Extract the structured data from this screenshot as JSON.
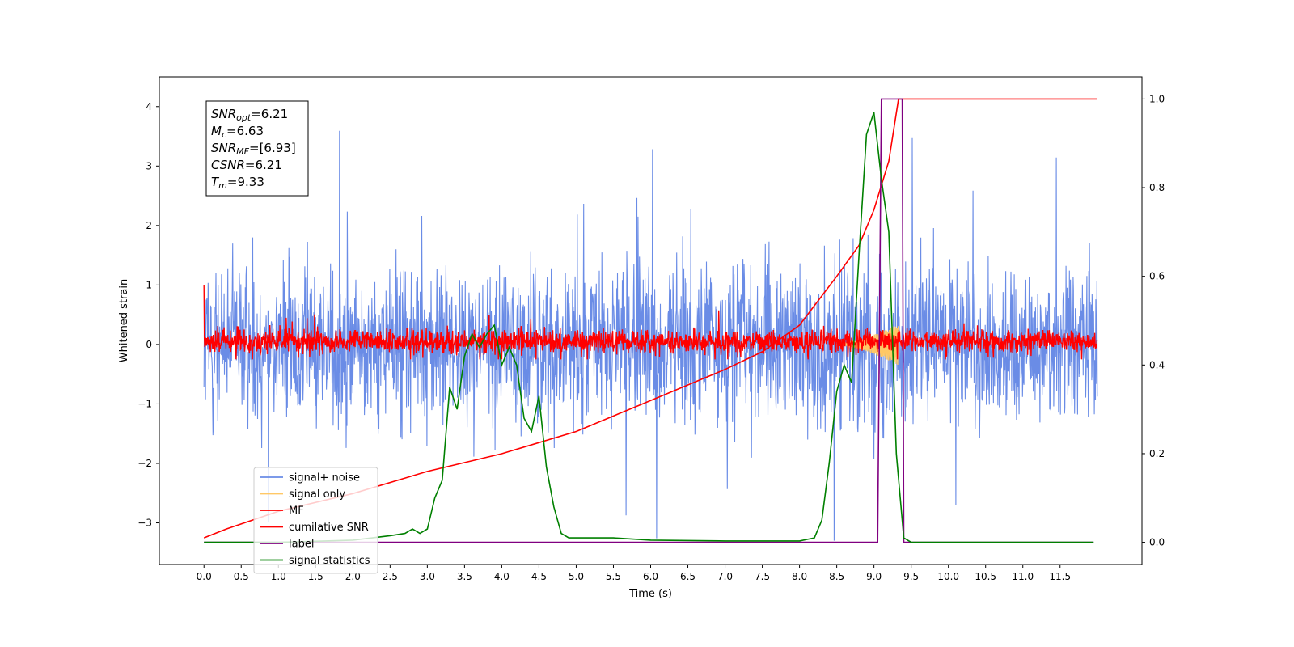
{
  "chart_data": {
    "type": "line",
    "xlabel": "Time (s)",
    "ylabel": "Whitened strain",
    "xlim": [
      -0.6,
      12.6
    ],
    "ylim_left": [
      -3.7,
      4.5
    ],
    "ylim_right": [
      -0.05,
      1.05
    ],
    "x_ticks": [
      "0.0",
      "0.5",
      "1.0",
      "1.5",
      "2.0",
      "2.5",
      "3.0",
      "3.5",
      "4.0",
      "4.5",
      "5.0",
      "5.5",
      "6.0",
      "6.5",
      "7.0",
      "7.5",
      "8.0",
      "8.5",
      "9.0",
      "9.5",
      "10.0",
      "10.5",
      "11.0",
      "11.5"
    ],
    "y_ticks_left": [
      "4",
      "3",
      "2",
      "1",
      "0",
      "−1",
      "−2",
      "−3"
    ],
    "y_ticks_right": [
      "1.0",
      "0.8",
      "0.6",
      "0.4",
      "0.2",
      "0.0"
    ],
    "annotation": {
      "lines": [
        {
          "symbol": "SNR",
          "sub": "opt",
          "text": "=6.21"
        },
        {
          "symbol": "M",
          "sub": "c",
          "text": "=6.63"
        },
        {
          "symbol": "SNR",
          "sub": "MF",
          "text": "=[6.93]"
        },
        {
          "symbol": "CSNR",
          "sub": "",
          "text": "=6.21"
        },
        {
          "symbol": "T",
          "sub": "m",
          "text": "=9.33"
        }
      ]
    },
    "legend_position": "lower-left",
    "series": [
      {
        "name": "signal+ noise",
        "axis": "left",
        "color": "#6a8ce6",
        "kind": "noise",
        "x_range": [
          0.0,
          12.0
        ],
        "typical_range": [
          -1.7,
          1.7
        ],
        "extremes": [
          -3.3,
          4.15
        ]
      },
      {
        "name": "signal only",
        "axis": "left",
        "color": "#ffc866",
        "kind": "chirp",
        "x_range": [
          8.5,
          9.33
        ],
        "amplitude": 0.35
      },
      {
        "name": "MF",
        "axis": "left",
        "color": "#ff0000",
        "kind": "noise",
        "x_range": [
          0.0,
          12.0
        ],
        "typical_range": [
          -0.2,
          0.3
        ],
        "extremes": [
          -0.25,
          1.0
        ]
      },
      {
        "name": "cumilative SNR",
        "axis": "right",
        "color": "#ff0000",
        "kind": "curve",
        "x": [
          0.0,
          0.3,
          1.0,
          2.0,
          3.0,
          4.0,
          5.0,
          6.0,
          7.0,
          7.5,
          8.0,
          8.5,
          8.8,
          9.0,
          9.2,
          9.33,
          12.0
        ],
        "y": [
          0.01,
          0.03,
          0.07,
          0.11,
          0.16,
          0.2,
          0.25,
          0.32,
          0.39,
          0.43,
          0.49,
          0.6,
          0.67,
          0.75,
          0.86,
          1.0,
          1.0
        ]
      },
      {
        "name": "label",
        "axis": "right",
        "color": "#800080",
        "kind": "step",
        "x": [
          0.0,
          9.05,
          9.1,
          9.38,
          9.4,
          11.95
        ],
        "y": [
          0.0,
          0.0,
          1.0,
          1.0,
          0.0,
          0.0
        ]
      },
      {
        "name": "signal statistics",
        "axis": "right",
        "color": "#008000",
        "kind": "curve",
        "x": [
          0.0,
          1.0,
          2.0,
          2.5,
          2.7,
          2.8,
          2.9,
          3.0,
          3.1,
          3.2,
          3.3,
          3.4,
          3.5,
          3.6,
          3.7,
          3.8,
          3.9,
          4.0,
          4.1,
          4.2,
          4.3,
          4.4,
          4.5,
          4.6,
          4.7,
          4.8,
          4.9,
          5.0,
          5.5,
          6.0,
          7.0,
          8.0,
          8.2,
          8.3,
          8.4,
          8.5,
          8.6,
          8.7,
          8.8,
          8.9,
          9.0,
          9.1,
          9.2,
          9.3,
          9.4,
          9.5,
          10.0,
          11.0,
          11.95
        ],
        "y": [
          0.0,
          0.0,
          0.005,
          0.015,
          0.02,
          0.03,
          0.02,
          0.03,
          0.1,
          0.14,
          0.35,
          0.3,
          0.42,
          0.47,
          0.44,
          0.47,
          0.49,
          0.4,
          0.44,
          0.4,
          0.28,
          0.25,
          0.33,
          0.17,
          0.08,
          0.02,
          0.01,
          0.01,
          0.01,
          0.005,
          0.003,
          0.003,
          0.01,
          0.05,
          0.18,
          0.34,
          0.4,
          0.36,
          0.65,
          0.92,
          0.97,
          0.82,
          0.7,
          0.2,
          0.01,
          0.0,
          0.0,
          0.0,
          0.0
        ]
      }
    ]
  }
}
